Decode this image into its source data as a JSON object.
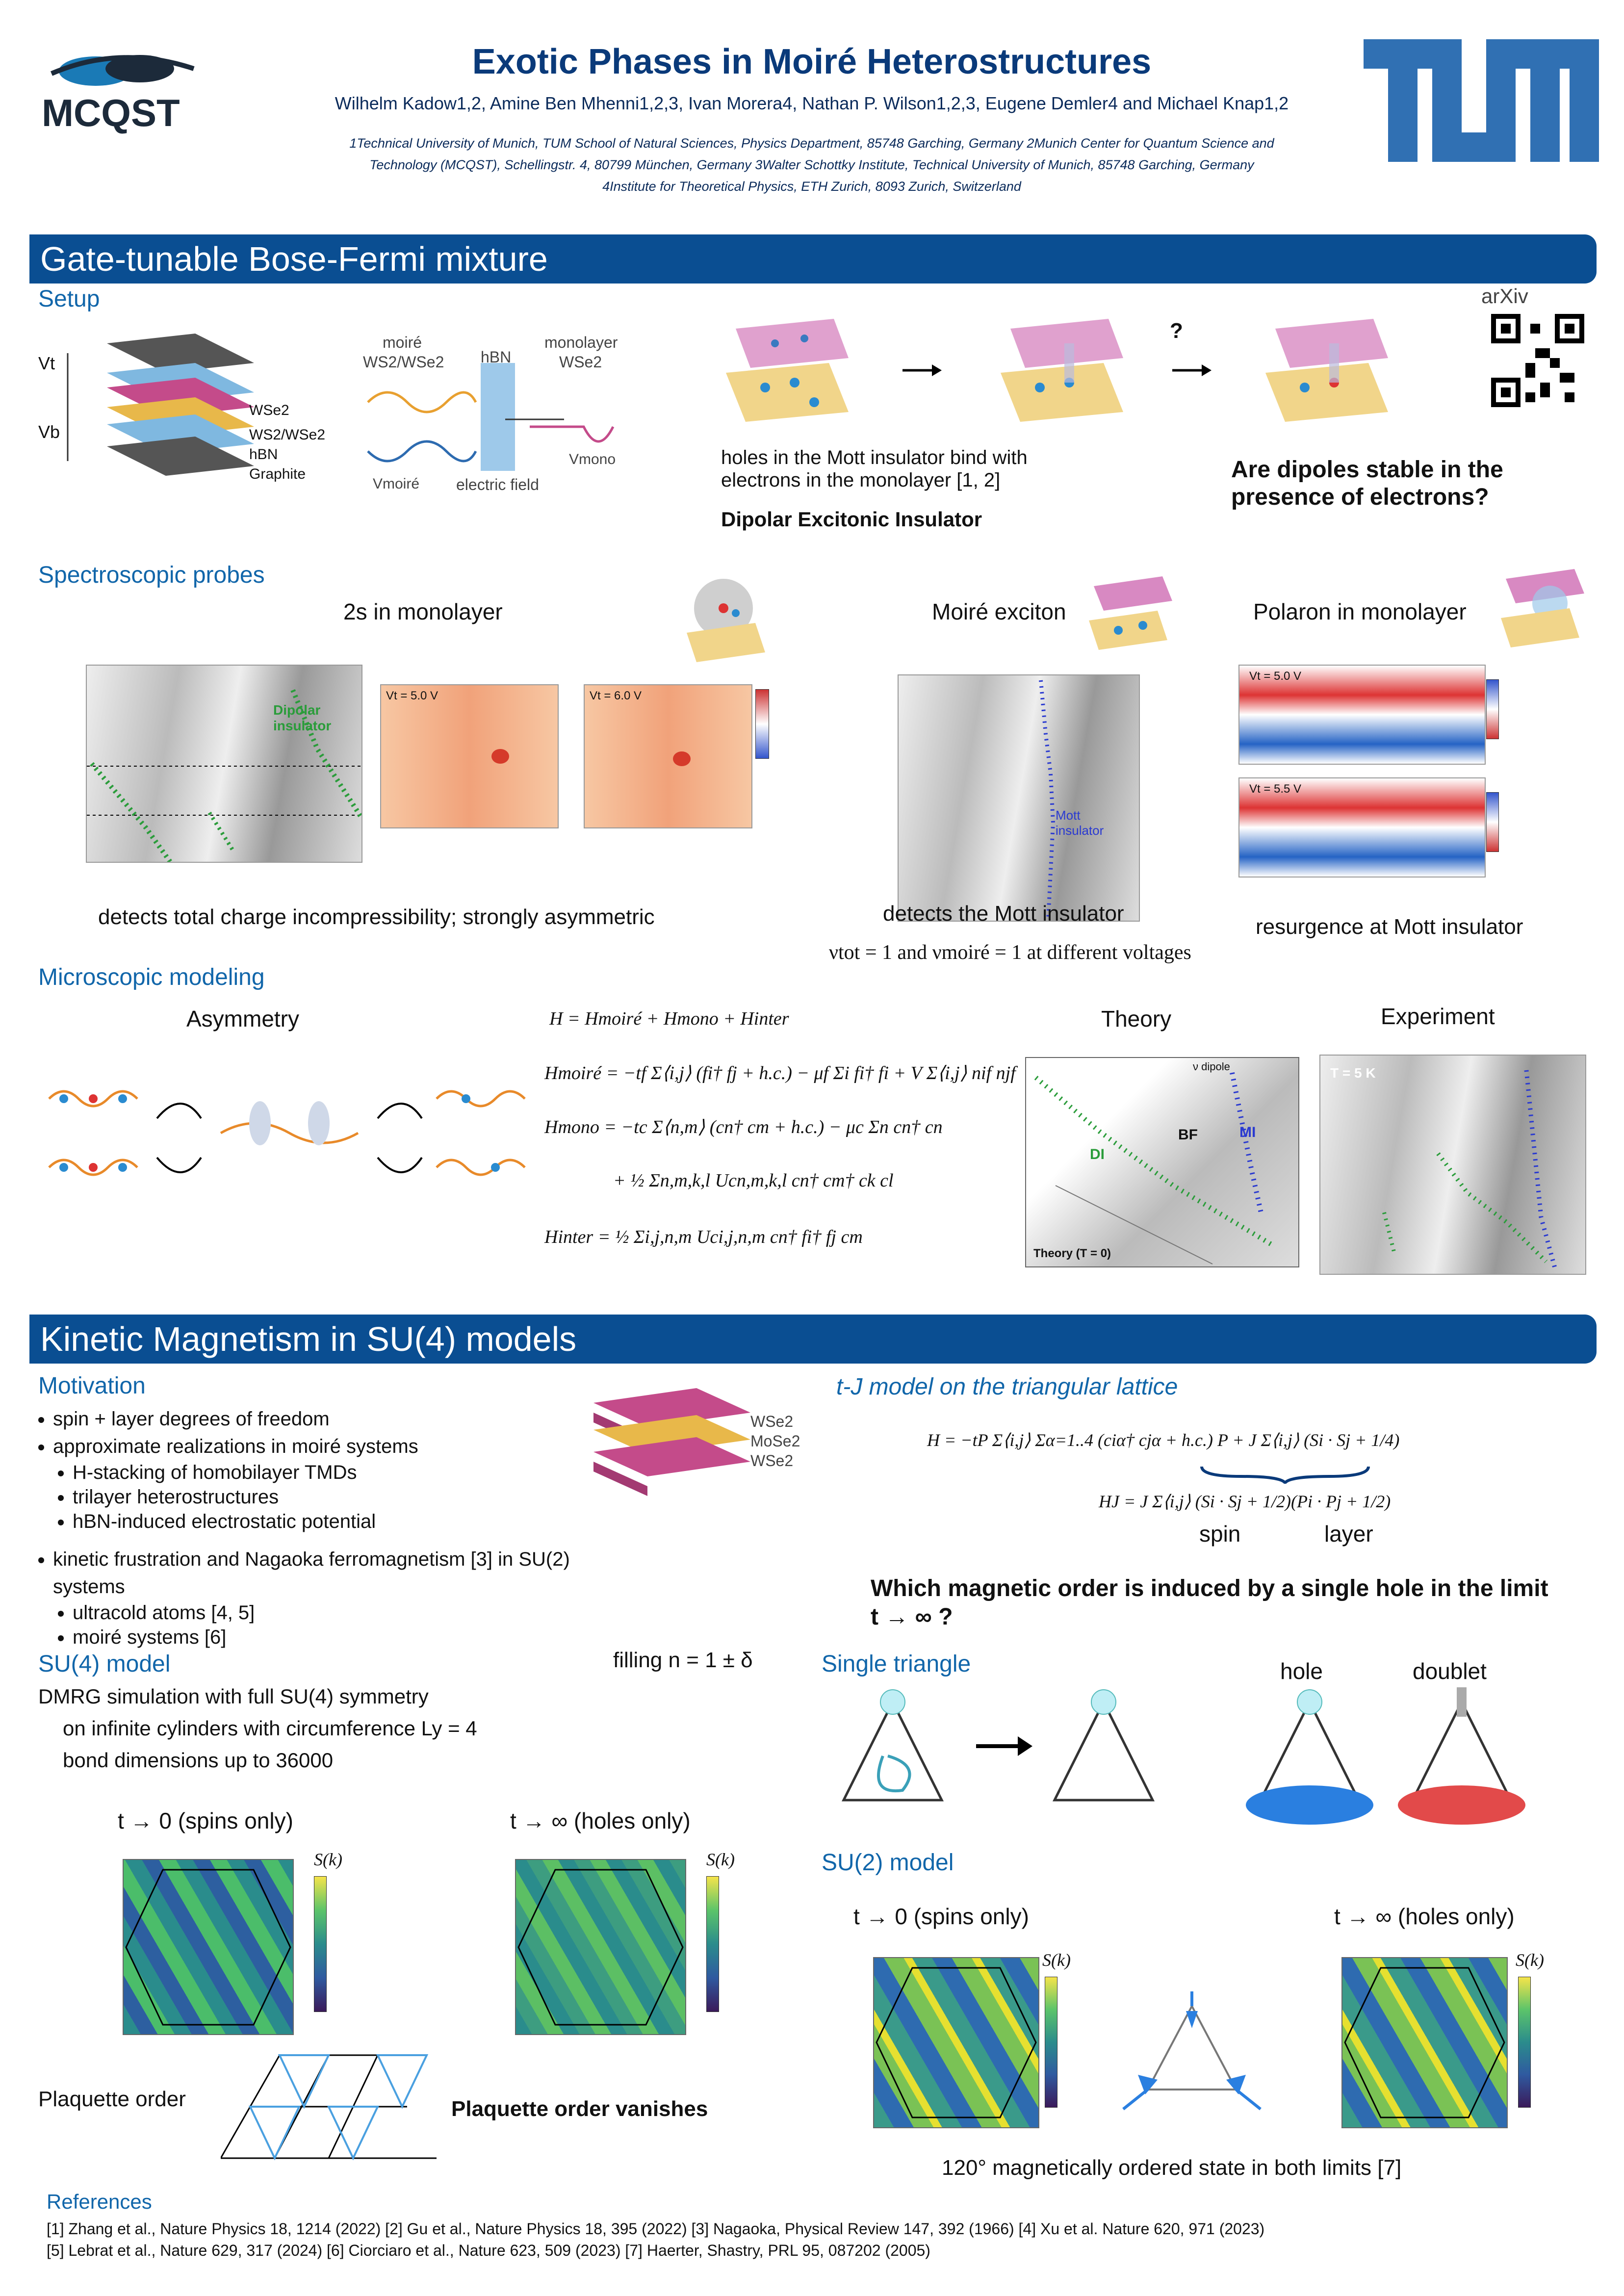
{
  "header": {
    "title": "Exotic Phases in Moiré Heterostructures",
    "authors": "Wilhelm Kadow1,2, Amine Ben Mhenni1,2,3, Ivan Morera4, Nathan P. Wilson1,2,3, Eugene Demler4 and Michael Knap1,2",
    "affiliation_line1": "1Technical University of Munich, TUM School of Natural Sciences, Physics Department, 85748 Garching, Germany 2Munich Center for Quantum Science and",
    "affiliation_line2": "Technology (MCQST), Schellingstr. 4, 80799 München, Germany 3Walter Schottky Institute, Technical University of Munich, 85748 Garching, Germany",
    "affiliation_line3": "4Institute for Theoretical Physics, ETH Zurich, 8093 Zurich, Switzerland",
    "logo_left_text": "MCQST",
    "logo_right_text": "TUM"
  },
  "section1": {
    "banner": "Gate-tunable Bose-Fermi mixture",
    "setup": {
      "heading": "Setup",
      "stack_labels": [
        "WSe2",
        "WS2/WSe2",
        "hBN",
        "Graphite"
      ],
      "gate_labels": [
        "Vt",
        "Vb"
      ],
      "band_labels": [
        "moiré",
        "WS2/WSe2",
        "hBN",
        "monolayer",
        "WSe2",
        "Vmoiré",
        "electric field",
        "Vmono"
      ],
      "bind_text": "holes in the Mott insulator bind with electrons in the monolayer [1, 2]",
      "insulator_label": "Dipolar Excitonic Insulator",
      "question_mark": "?",
      "question": "Are dipoles stable in the presence of electrons?",
      "arxiv_label": "arXiv"
    },
    "spectro": {
      "heading": "Spectroscopic probes",
      "panel1_title": "2s in monolayer",
      "panel1_caption": "detects total charge incompressibility; strongly asymmetric",
      "panel1_labels": [
        "Dipolar insulator",
        "Vt = 5.0 V",
        "Vt = 6.0 V"
      ],
      "panel2_title": "Moiré exciton",
      "panel2_caption": "detects the Mott insulator",
      "panel2_caption2": "νtot = 1   and  νmoiré = 1  at different voltages",
      "panel2_labels": [
        "Mott insulator"
      ],
      "panel3_title": "Polaron in monolayer",
      "panel3_caption": "resurgence at Mott insulator",
      "panel3_labels": [
        "Vt = 5.0 V",
        "Vt = 5.5 V"
      ]
    },
    "modeling": {
      "heading": "Microscopic modeling",
      "asym_title": "Asymmetry",
      "eq_H": "H = Hmoiré + Hmono + Hinter",
      "eq_moire": "Hmoiré = −tf Σ⟨i,j⟩ (fi† fj + h.c.) − μf Σi fi† fi + V Σ⟨i,j⟩ nif njf",
      "eq_mono": "Hmono = −tc Σ⟨n,m⟩ (cn† cm + h.c.) − μc Σn cn† cn",
      "eq_mono2": "+ ½ Σn,m,k,l Ucn,m,k,l cn† cm† ck cl",
      "eq_inter": "Hinter = ½ Σi,j,n,m Uci,j,n,m cn† fi† fj cm",
      "theory_title": "Theory",
      "theory_labels": [
        "BF",
        "MI",
        "DI",
        "Theory (T = 0)",
        "ν dipole"
      ],
      "experiment_title": "Experiment",
      "experiment_labels": [
        "T = 5 K"
      ]
    }
  },
  "section2": {
    "banner": "Kinetic Magnetism in SU(4) models",
    "motivation": {
      "heading": "Motivation",
      "bullets": [
        "spin + layer degrees of freedom",
        "approximate realizations in moiré systems"
      ],
      "sub_bullets": [
        "H-stacking of homobilayer TMDs",
        "trilayer heterostructures",
        "hBN-induced electrostatic potential"
      ],
      "bullet3": "kinetic frustration and Nagaoka ferromagnetism [3] in SU(2) systems",
      "sub_bullets2": [
        "ultracold atoms [4, 5]",
        "moiré systems [6]"
      ],
      "stack_labels": [
        "WSe2",
        "MoSe2",
        "WSe2"
      ]
    },
    "tj": {
      "heading": "t-J model on the triangular lattice",
      "eq_H": "H = −tP Σ⟨i,j⟩ Σα=1..4 (ciα† cjα + h.c.) P + J Σ⟨i,j⟩ (Si · Sj + 1/4)",
      "eq_HJ": "HJ = J Σ⟨i,j⟩ (Si · Sj + 1/2)(Pi · Pj + 1/2)",
      "spin_label": "spin",
      "layer_label": "layer",
      "question": "Which magnetic order is induced by a single hole in the limit  t → ∞  ?"
    },
    "su4": {
      "heading": "SU(4) model",
      "filling": "filling n = 1 ± δ",
      "line1": "DMRG simulation with full SU(4) symmetry",
      "line2": "on infinite cylinders with circumference Ly = 4",
      "line3": "bond dimensions up to 36000",
      "plot1_title": "t → 0  (spins only)",
      "plot2_title": "t → ∞ (holes only)",
      "sk_label": "S(k)",
      "plaquette_label": "Plaquette order",
      "vanish_label": "Plaquette order vanishes"
    },
    "triangle": {
      "heading": "Single triangle",
      "hole_label": "hole",
      "doublet_label": "doublet"
    },
    "su2": {
      "heading": "SU(2) model",
      "plot1_title": "t → 0  (spins only)",
      "plot2_title": "t → ∞ (holes only)",
      "sk_label": "S(k)",
      "caption": "120° magnetically ordered state in both limits [7]"
    }
  },
  "references": {
    "heading": "References",
    "line1": "[1] Zhang et al., Nature Physics 18, 1214 (2022) [2] Gu et al., Nature Physics 18, 395 (2022) [3] Nagaoka,  Physical Review 147, 392 (1966) [4] Xu et al. Nature 620, 971 (2023)",
    "line2": "[5] Lebrat et al., Nature 629, 317 (2024) [6] Ciorciaro et al., Nature 623, 509 (2023) [7] Haerter, Shastry, PRL 95, 087202 (2005)"
  },
  "colors": {
    "title": "#0a3a7a",
    "banner": "#0a4e92",
    "subheading": "#1166aa",
    "tum_blue": "#3070b3"
  }
}
